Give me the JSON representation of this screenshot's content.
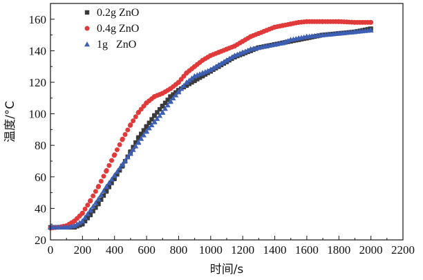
{
  "chart_data": {
    "type": "scatter",
    "xlabel": "时间/s",
    "ylabel": "温度/°C",
    "xlim": [
      0,
      2200
    ],
    "ylim": [
      20,
      170
    ],
    "x_ticks": [
      "0",
      "200",
      "400",
      "600",
      "800",
      "1000",
      "1200",
      "1400",
      "1600",
      "1800",
      "2000",
      "2200"
    ],
    "y_ticks": [
      "20",
      "40",
      "60",
      "80",
      "100",
      "120",
      "140",
      "160"
    ],
    "x_tick_values": [
      0,
      200,
      400,
      600,
      800,
      1000,
      1200,
      1400,
      1600,
      1800,
      2000,
      2200
    ],
    "y_tick_values": [
      20,
      40,
      60,
      80,
      100,
      120,
      140,
      160
    ],
    "grid": false,
    "legend_position": "top-left",
    "series": [
      {
        "name": "0.2g ZnO",
        "marker": "square",
        "color": "#3a3a3a",
        "points": [
          [
            0,
            28
          ],
          [
            100,
            28
          ],
          [
            150,
            28
          ],
          [
            200,
            30
          ],
          [
            250,
            36
          ],
          [
            300,
            43
          ],
          [
            350,
            51
          ],
          [
            400,
            59
          ],
          [
            450,
            67
          ],
          [
            500,
            76
          ],
          [
            550,
            85
          ],
          [
            600,
            92
          ],
          [
            650,
            99
          ],
          [
            700,
            105
          ],
          [
            750,
            111
          ],
          [
            800,
            115
          ],
          [
            850,
            118
          ],
          [
            900,
            121
          ],
          [
            950,
            124
          ],
          [
            1000,
            127
          ],
          [
            1050,
            130
          ],
          [
            1100,
            133
          ],
          [
            1150,
            136
          ],
          [
            1200,
            138
          ],
          [
            1250,
            140
          ],
          [
            1300,
            142
          ],
          [
            1350,
            143
          ],
          [
            1400,
            144
          ],
          [
            1450,
            145
          ],
          [
            1500,
            146
          ],
          [
            1550,
            147
          ],
          [
            1600,
            148
          ],
          [
            1700,
            150
          ],
          [
            1800,
            151
          ],
          [
            1900,
            152
          ],
          [
            2000,
            154
          ]
        ]
      },
      {
        "name": "0.4g ZnO",
        "marker": "circle",
        "color": "#e03a3a",
        "points": [
          [
            0,
            27.5
          ],
          [
            50,
            28
          ],
          [
            100,
            29
          ],
          [
            150,
            32
          ],
          [
            200,
            37
          ],
          [
            250,
            45
          ],
          [
            300,
            54
          ],
          [
            350,
            64
          ],
          [
            400,
            74
          ],
          [
            450,
            84
          ],
          [
            500,
            93
          ],
          [
            550,
            101
          ],
          [
            600,
            107
          ],
          [
            650,
            111
          ],
          [
            700,
            113
          ],
          [
            750,
            116
          ],
          [
            800,
            120
          ],
          [
            850,
            126
          ],
          [
            900,
            130
          ],
          [
            950,
            134
          ],
          [
            1000,
            137
          ],
          [
            1050,
            139
          ],
          [
            1100,
            141
          ],
          [
            1150,
            143
          ],
          [
            1200,
            146
          ],
          [
            1250,
            149
          ],
          [
            1300,
            151
          ],
          [
            1350,
            153
          ],
          [
            1400,
            155
          ],
          [
            1450,
            156
          ],
          [
            1500,
            157
          ],
          [
            1550,
            158
          ],
          [
            1600,
            158.5
          ],
          [
            1700,
            158.5
          ],
          [
            1800,
            158.5
          ],
          [
            1900,
            158
          ],
          [
            2000,
            158
          ]
        ]
      },
      {
        "name": "1g   ZnO",
        "marker": "triangle",
        "color": "#3d5fb4",
        "points": [
          [
            0,
            28
          ],
          [
            50,
            28
          ],
          [
            100,
            28
          ],
          [
            150,
            29
          ],
          [
            200,
            32
          ],
          [
            250,
            39
          ],
          [
            300,
            46
          ],
          [
            350,
            54
          ],
          [
            400,
            61
          ],
          [
            450,
            68
          ],
          [
            500,
            75
          ],
          [
            550,
            82
          ],
          [
            600,
            89
          ],
          [
            650,
            95
          ],
          [
            700,
            101
          ],
          [
            750,
            108
          ],
          [
            800,
            114
          ],
          [
            850,
            120
          ],
          [
            900,
            124
          ],
          [
            950,
            126
          ],
          [
            1000,
            128
          ],
          [
            1050,
            131
          ],
          [
            1100,
            134
          ],
          [
            1150,
            137
          ],
          [
            1200,
            139
          ],
          [
            1250,
            141
          ],
          [
            1300,
            142
          ],
          [
            1350,
            143
          ],
          [
            1400,
            144
          ],
          [
            1450,
            145
          ],
          [
            1500,
            147
          ],
          [
            1550,
            148
          ],
          [
            1600,
            149
          ],
          [
            1700,
            150
          ],
          [
            1800,
            151
          ],
          [
            1900,
            152
          ],
          [
            2000,
            153
          ]
        ]
      }
    ]
  }
}
